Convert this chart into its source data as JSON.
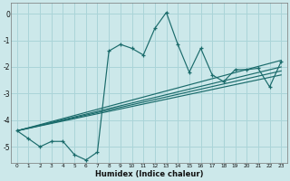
{
  "xlabel": "Humidex (Indice chaleur)",
  "bg_color": "#cce8ea",
  "grid_color": "#aad4d8",
  "line_color": "#1a6b6b",
  "xlim": [
    -0.5,
    23.5
  ],
  "ylim": [
    -5.6,
    0.4
  ],
  "yticks": [
    0,
    -1,
    -2,
    -3,
    -4,
    -5
  ],
  "xticks": [
    0,
    1,
    2,
    3,
    4,
    5,
    6,
    7,
    8,
    9,
    10,
    11,
    12,
    13,
    14,
    15,
    16,
    17,
    18,
    19,
    20,
    21,
    22,
    23
  ],
  "main_line_x": [
    0,
    1,
    2,
    3,
    4,
    5,
    6,
    7,
    8,
    9,
    10,
    11,
    12,
    13,
    14,
    15,
    16,
    17,
    18,
    19,
    20,
    21,
    22,
    23
  ],
  "main_line_y": [
    -4.4,
    -4.7,
    -5.0,
    -4.8,
    -4.8,
    -5.3,
    -5.5,
    -5.2,
    -1.4,
    -1.15,
    -1.3,
    -1.55,
    -0.55,
    0.05,
    -1.15,
    -2.2,
    -1.3,
    -2.3,
    -2.55,
    -2.1,
    -2.1,
    -2.05,
    -2.75,
    -1.8
  ],
  "straight_lines": [
    {
      "x": [
        0,
        23
      ],
      "y": [
        -4.4,
        -1.75
      ]
    },
    {
      "x": [
        0,
        23
      ],
      "y": [
        -4.4,
        -2.0
      ]
    },
    {
      "x": [
        0,
        23
      ],
      "y": [
        -4.4,
        -2.15
      ]
    },
    {
      "x": [
        0,
        23
      ],
      "y": [
        -4.4,
        -2.3
      ]
    }
  ]
}
